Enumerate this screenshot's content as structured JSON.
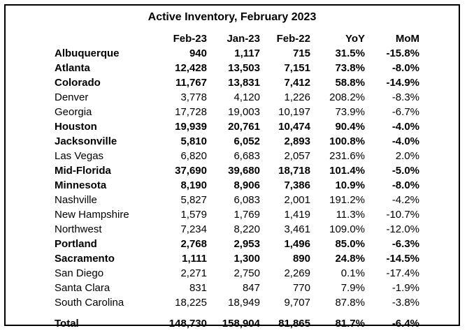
{
  "title": "Active Inventory, February 2023",
  "columns": [
    "Feb-23",
    "Jan-23",
    "Feb-22",
    "YoY",
    "MoM"
  ],
  "rows": [
    {
      "name": "Albuquerque",
      "feb23": "940",
      "jan23": "1,117",
      "feb22": "715",
      "yoy": "31.5%",
      "mom": "-15.8%",
      "bold": true
    },
    {
      "name": "Atlanta",
      "feb23": "12,428",
      "jan23": "13,503",
      "feb22": "7,151",
      "yoy": "73.8%",
      "mom": "-8.0%",
      "bold": true
    },
    {
      "name": "Colorado",
      "feb23": "11,767",
      "jan23": "13,831",
      "feb22": "7,412",
      "yoy": "58.8%",
      "mom": "-14.9%",
      "bold": true
    },
    {
      "name": "Denver",
      "feb23": "3,778",
      "jan23": "4,120",
      "feb22": "1,226",
      "yoy": "208.2%",
      "mom": "-8.3%",
      "bold": false
    },
    {
      "name": "Georgia",
      "feb23": "17,728",
      "jan23": "19,003",
      "feb22": "10,197",
      "yoy": "73.9%",
      "mom": "-6.7%",
      "bold": false
    },
    {
      "name": "Houston",
      "feb23": "19,939",
      "jan23": "20,761",
      "feb22": "10,474",
      "yoy": "90.4%",
      "mom": "-4.0%",
      "bold": true
    },
    {
      "name": "Jacksonville",
      "feb23": "5,810",
      "jan23": "6,052",
      "feb22": "2,893",
      "yoy": "100.8%",
      "mom": "-4.0%",
      "bold": true
    },
    {
      "name": "Las Vegas",
      "feb23": "6,820",
      "jan23": "6,683",
      "feb22": "2,057",
      "yoy": "231.6%",
      "mom": "2.0%",
      "bold": false
    },
    {
      "name": "Mid-Florida",
      "feb23": "37,690",
      "jan23": "39,680",
      "feb22": "18,718",
      "yoy": "101.4%",
      "mom": "-5.0%",
      "bold": true
    },
    {
      "name": "Minnesota",
      "feb23": "8,190",
      "jan23": "8,906",
      "feb22": "7,386",
      "yoy": "10.9%",
      "mom": "-8.0%",
      "bold": true
    },
    {
      "name": "Nashville",
      "feb23": "5,827",
      "jan23": "6,083",
      "feb22": "2,001",
      "yoy": "191.2%",
      "mom": "-4.2%",
      "bold": false
    },
    {
      "name": "New Hampshire",
      "feb23": "1,579",
      "jan23": "1,769",
      "feb22": "1,419",
      "yoy": "11.3%",
      "mom": "-10.7%",
      "bold": false
    },
    {
      "name": "Northwest",
      "feb23": "7,234",
      "jan23": "8,220",
      "feb22": "3,461",
      "yoy": "109.0%",
      "mom": "-12.0%",
      "bold": false
    },
    {
      "name": "Portland",
      "feb23": "2,768",
      "jan23": "2,953",
      "feb22": "1,496",
      "yoy": "85.0%",
      "mom": "-6.3%",
      "bold": true
    },
    {
      "name": "Sacramento",
      "feb23": "1,111",
      "jan23": "1,300",
      "feb22": "890",
      "yoy": "24.8%",
      "mom": "-14.5%",
      "bold": true
    },
    {
      "name": "San Diego",
      "feb23": "2,271",
      "jan23": "2,750",
      "feb22": "2,269",
      "yoy": "0.1%",
      "mom": "-17.4%",
      "bold": false
    },
    {
      "name": "Santa Clara",
      "feb23": "831",
      "jan23": "847",
      "feb22": "770",
      "yoy": "7.9%",
      "mom": "-1.9%",
      "bold": false
    },
    {
      "name": "South Carolina",
      "feb23": "18,225",
      "jan23": "18,949",
      "feb22": "9,707",
      "yoy": "87.8%",
      "mom": "-3.8%",
      "bold": false
    }
  ],
  "total": {
    "name": "Total",
    "feb23": "148,730",
    "jan23": "158,904",
    "feb22": "81,865",
    "yoy": "81.7%",
    "mom": "-6.4%"
  }
}
